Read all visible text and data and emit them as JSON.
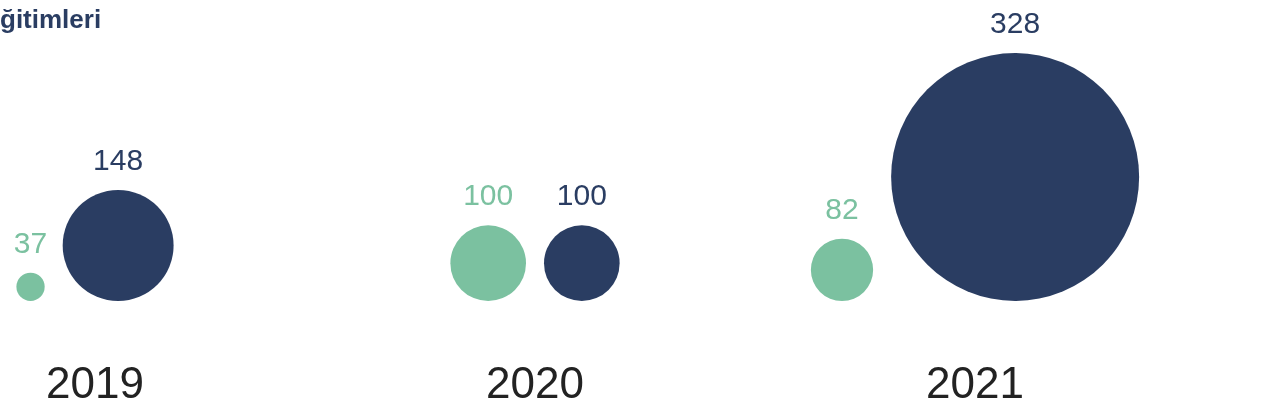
{
  "chart_data": {
    "type": "bubble",
    "title": "ğitimleri",
    "categories": [
      "2019",
      "2020",
      "2021"
    ],
    "series": [
      {
        "color": "#7bc1a0",
        "values": [
          37,
          100,
          82
        ],
        "sizes": [
          0.013,
          0.093,
          0.063
        ]
      },
      {
        "color": "#2a3d62",
        "values": [
          148,
          100,
          328
        ],
        "sizes": [
          0.2,
          0.093,
          1
        ]
      }
    ],
    "data_labels": true
  }
}
